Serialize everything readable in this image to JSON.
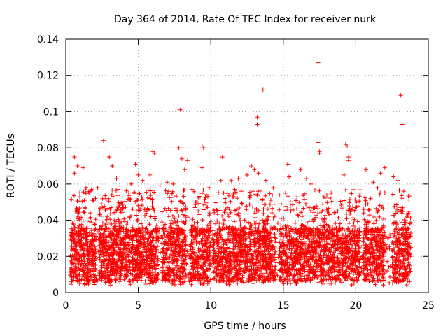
{
  "chart_data": {
    "type": "scatter",
    "title": "Day 364 of 2014, Rate Of TEC Index for receiver nurk",
    "xlabel": "GPS time / hours",
    "ylabel": "ROTI / TECUs",
    "xlim": [
      0,
      25
    ],
    "ylim": [
      0,
      0.14
    ],
    "x_ticks": [
      0,
      5,
      10,
      15,
      20,
      25
    ],
    "y_ticks": [
      0,
      0.02,
      0.04,
      0.06,
      0.08,
      0.1,
      0.12,
      0.14
    ],
    "x_tick_labels": [
      "0",
      "5",
      "10",
      "15",
      "20",
      "25"
    ],
    "y_tick_labels": [
      "0",
      "0.02",
      "0.04",
      "0.06",
      "0.08",
      "0.1",
      "0.12",
      "0.14"
    ],
    "grid": true,
    "marker": "plus",
    "color": "#ff0000",
    "series": [
      {
        "name": "ROTI",
        "bulk_range": {
          "x": [
            0.3,
            23.8
          ],
          "y": [
            0.003,
            0.05
          ]
        },
        "points": [
          {
            "x": 0.6,
            "y": 0.075
          },
          {
            "x": 0.6,
            "y": 0.066
          },
          {
            "x": 0.8,
            "y": 0.07
          },
          {
            "x": 1.2,
            "y": 0.069
          },
          {
            "x": 1.4,
            "y": 0.058
          },
          {
            "x": 1.6,
            "y": 0.055
          },
          {
            "x": 2.2,
            "y": 0.058
          },
          {
            "x": 2.6,
            "y": 0.084
          },
          {
            "x": 3.0,
            "y": 0.075
          },
          {
            "x": 3.2,
            "y": 0.07
          },
          {
            "x": 3.5,
            "y": 0.063
          },
          {
            "x": 3.6,
            "y": 0.057
          },
          {
            "x": 4.8,
            "y": 0.071
          },
          {
            "x": 4.5,
            "y": 0.06
          },
          {
            "x": 5.0,
            "y": 0.065
          },
          {
            "x": 5.3,
            "y": 0.062
          },
          {
            "x": 5.8,
            "y": 0.065
          },
          {
            "x": 6.0,
            "y": 0.078
          },
          {
            "x": 6.1,
            "y": 0.077
          },
          {
            "x": 6.5,
            "y": 0.059
          },
          {
            "x": 7.0,
            "y": 0.061
          },
          {
            "x": 7.4,
            "y": 0.06
          },
          {
            "x": 7.8,
            "y": 0.08
          },
          {
            "x": 7.9,
            "y": 0.101
          },
          {
            "x": 8.0,
            "y": 0.074
          },
          {
            "x": 8.2,
            "y": 0.068
          },
          {
            "x": 8.4,
            "y": 0.073
          },
          {
            "x": 8.7,
            "y": 0.057
          },
          {
            "x": 9.4,
            "y": 0.081
          },
          {
            "x": 9.5,
            "y": 0.08
          },
          {
            "x": 9.4,
            "y": 0.069
          },
          {
            "x": 9.9,
            "y": 0.058
          },
          {
            "x": 10.8,
            "y": 0.075
          },
          {
            "x": 10.7,
            "y": 0.062
          },
          {
            "x": 11.4,
            "y": 0.062
          },
          {
            "x": 11.9,
            "y": 0.063
          },
          {
            "x": 12.5,
            "y": 0.065
          },
          {
            "x": 12.8,
            "y": 0.07
          },
          {
            "x": 13.0,
            "y": 0.068
          },
          {
            "x": 13.2,
            "y": 0.097
          },
          {
            "x": 13.2,
            "y": 0.093
          },
          {
            "x": 13.3,
            "y": 0.066
          },
          {
            "x": 13.6,
            "y": 0.112
          },
          {
            "x": 13.8,
            "y": 0.062
          },
          {
            "x": 14.3,
            "y": 0.058
          },
          {
            "x": 15.3,
            "y": 0.071
          },
          {
            "x": 15.4,
            "y": 0.064
          },
          {
            "x": 16.2,
            "y": 0.068
          },
          {
            "x": 16.6,
            "y": 0.063
          },
          {
            "x": 16.9,
            "y": 0.06
          },
          {
            "x": 17.4,
            "y": 0.127
          },
          {
            "x": 17.4,
            "y": 0.083
          },
          {
            "x": 17.5,
            "y": 0.078
          },
          {
            "x": 17.5,
            "y": 0.077
          },
          {
            "x": 17.8,
            "y": 0.053
          },
          {
            "x": 18.3,
            "y": 0.055
          },
          {
            "x": 19.3,
            "y": 0.082
          },
          {
            "x": 19.4,
            "y": 0.081
          },
          {
            "x": 19.5,
            "y": 0.075
          },
          {
            "x": 19.5,
            "y": 0.073
          },
          {
            "x": 19.2,
            "y": 0.065
          },
          {
            "x": 20.3,
            "y": 0.055
          },
          {
            "x": 20.7,
            "y": 0.068
          },
          {
            "x": 21.2,
            "y": 0.061
          },
          {
            "x": 21.5,
            "y": 0.058
          },
          {
            "x": 22.6,
            "y": 0.064
          },
          {
            "x": 22.9,
            "y": 0.062
          },
          {
            "x": 23.1,
            "y": 0.109
          },
          {
            "x": 23.2,
            "y": 0.093
          },
          {
            "x": 23.3,
            "y": 0.056
          },
          {
            "x": 22.0,
            "y": 0.069
          },
          {
            "x": 21.7,
            "y": 0.066
          }
        ]
      }
    ]
  }
}
